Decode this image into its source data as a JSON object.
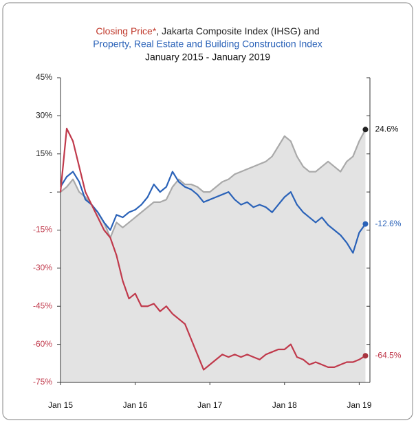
{
  "chart_data": {
    "type": "line",
    "title": [
      "Closing Price*",
      ", Jakarta Composite Index (IHSG) and",
      "Property, Real Estate and Building Construction Index"
    ],
    "title_colors": [
      "#c0392b",
      "#222222",
      "#2a62b8"
    ],
    "subtitle": "January 2015 - January 2019",
    "categories": [
      "Jan 15",
      null,
      null,
      null,
      null,
      null,
      null,
      null,
      null,
      null,
      null,
      null,
      "Jan 16",
      null,
      null,
      null,
      null,
      null,
      null,
      null,
      null,
      null,
      null,
      null,
      "Jan 17",
      null,
      null,
      null,
      null,
      null,
      null,
      null,
      null,
      null,
      null,
      null,
      "Jan 18",
      null,
      null,
      null,
      null,
      null,
      null,
      null,
      null,
      null,
      null,
      null,
      "Jan 19",
      null
    ],
    "series": [
      {
        "color": "#a9a9a9",
        "area": true,
        "values": [
          0,
          2,
          5,
          0,
          -2,
          -5,
          -8,
          -12,
          -18,
          -12,
          -14,
          -12,
          -10,
          -8,
          -6,
          -4,
          -4,
          -3,
          2,
          5,
          3,
          3,
          2,
          0,
          0,
          2,
          4,
          5,
          7,
          8,
          9,
          10,
          11,
          12,
          14,
          18,
          22,
          20,
          14,
          10,
          8,
          8,
          10,
          12,
          10,
          8,
          12,
          14,
          20,
          24.6
        ],
        "value_labels": [
          null,
          null,
          null,
          null,
          null,
          null,
          null,
          null,
          null,
          null,
          null,
          null,
          null,
          null,
          null,
          null,
          null,
          null,
          null,
          null,
          null,
          null,
          null,
          null,
          null,
          null,
          null,
          null,
          null,
          null,
          null,
          null,
          null,
          null,
          null,
          null,
          null,
          null,
          null,
          null,
          null,
          null,
          null,
          null,
          null,
          null,
          null,
          null,
          null,
          "24.6%"
        ],
        "dot_color": "#222222"
      },
      {
        "color": "#2a62b8",
        "values": [
          2,
          6,
          8,
          4,
          -3,
          -5,
          -8,
          -12,
          -15,
          -9,
          -10,
          -8,
          -7,
          -5,
          -2,
          3,
          0,
          2,
          8,
          4,
          2,
          1,
          -1,
          -4,
          -3,
          -2,
          -1,
          0,
          -3,
          -5,
          -4,
          -6,
          -5,
          -6,
          -8,
          -5,
          -2,
          0,
          -5,
          -8,
          -10,
          -12,
          -10,
          -13,
          -15,
          -17,
          -20,
          -24,
          -16,
          -12.6
        ],
        "value_labels": [
          null,
          null,
          null,
          null,
          null,
          null,
          null,
          null,
          null,
          null,
          null,
          null,
          null,
          null,
          null,
          null,
          null,
          null,
          null,
          null,
          null,
          null,
          null,
          null,
          null,
          null,
          null,
          null,
          null,
          null,
          null,
          null,
          null,
          null,
          null,
          null,
          null,
          null,
          null,
          null,
          null,
          null,
          null,
          null,
          null,
          null,
          null,
          null,
          null,
          "-12.6%"
        ],
        "dot_color": "#2a62b8"
      },
      {
        "color": "#c0394b",
        "values": [
          0,
          25,
          20,
          10,
          0,
          -5,
          -10,
          -15,
          -18,
          -25,
          -35,
          -42,
          -40,
          -45,
          -45,
          -44,
          -47,
          -45,
          -48,
          -50,
          -52,
          -58,
          -64,
          -70,
          -68,
          -66,
          -64,
          -65,
          -64,
          -65,
          -64,
          -65,
          -66,
          -64,
          -63,
          -62,
          -62,
          -60,
          -65,
          -66,
          -68,
          -67,
          -68,
          -69,
          -69,
          -68,
          -67,
          -67,
          -66,
          -64.5
        ],
        "value_labels": [
          null,
          null,
          null,
          null,
          null,
          null,
          null,
          null,
          null,
          null,
          null,
          null,
          null,
          null,
          null,
          null,
          null,
          null,
          null,
          null,
          null,
          null,
          null,
          null,
          null,
          null,
          null,
          null,
          null,
          null,
          null,
          null,
          null,
          null,
          null,
          null,
          null,
          null,
          null,
          null,
          null,
          null,
          null,
          null,
          null,
          null,
          null,
          null,
          null,
          "-64.5%"
        ],
        "dot_color": "#a8343f"
      }
    ],
    "ylim": [
      -75,
      45
    ],
    "yticks": [
      {
        "value": 45,
        "label": "45%"
      },
      {
        "value": 30,
        "label": "30%"
      },
      {
        "value": 15,
        "label": "15%"
      },
      {
        "value": 0,
        "label": "-"
      },
      {
        "value": -15,
        "label": "-15%"
      },
      {
        "value": -30,
        "label": "-30%"
      },
      {
        "value": -45,
        "label": "-45%"
      },
      {
        "value": -60,
        "label": "-60%"
      },
      {
        "value": -75,
        "label": "-75%"
      }
    ],
    "grid": false
  }
}
